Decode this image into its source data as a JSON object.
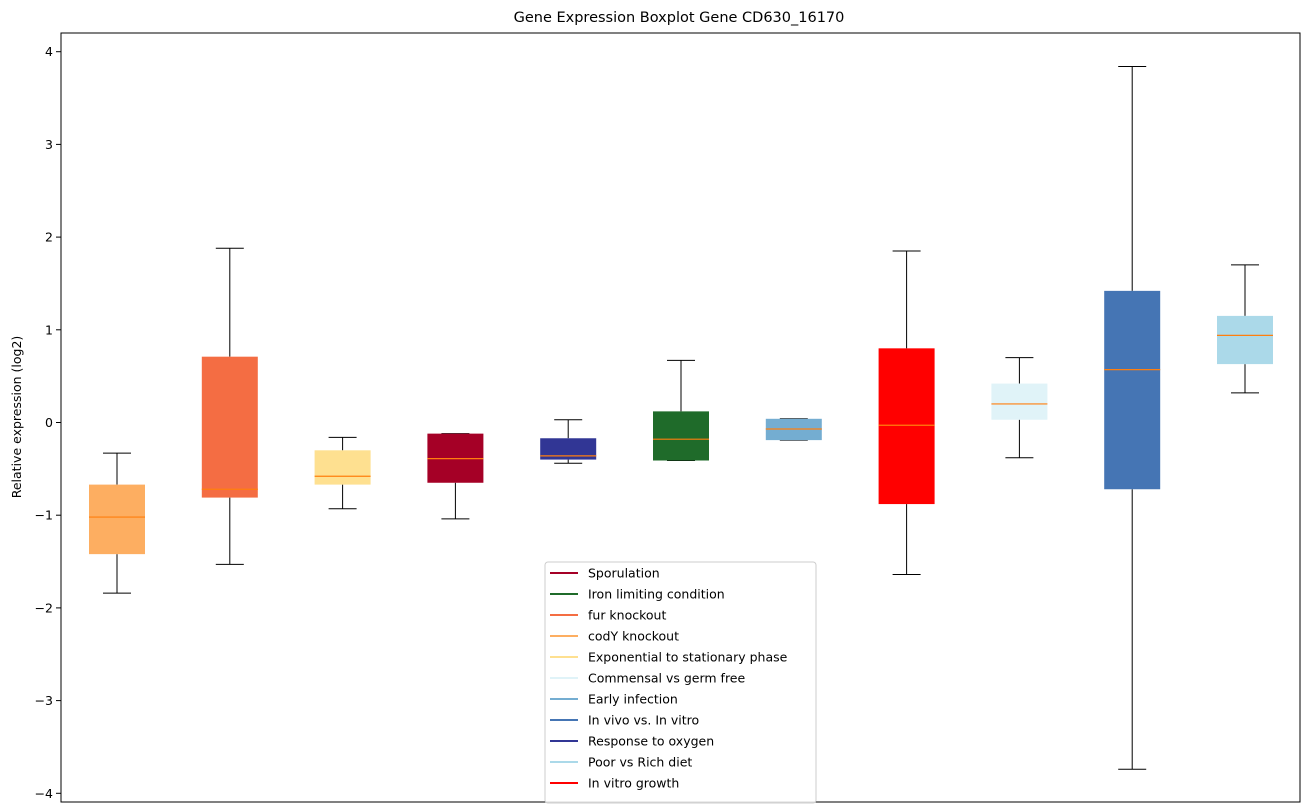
{
  "chart_data": {
    "type": "box",
    "title": "Gene Expression Boxplot Gene CD630_16170",
    "xlabel": "",
    "ylabel": "Relative expression (log2)",
    "ylim": [
      -4.1,
      4.2
    ],
    "yticks": [
      4,
      3,
      2,
      1,
      0,
      -1,
      -2,
      -3,
      -4
    ],
    "ytick_labels": [
      "4",
      "3",
      "2",
      "1",
      "0",
      "−1",
      "−2",
      "−3",
      "−4"
    ],
    "grid": false,
    "legend_position": "lower-center",
    "boxes": [
      {
        "whisker_low": -1.84,
        "q1": -1.42,
        "median": -1.02,
        "q3": -0.67,
        "whisker_high": -0.33,
        "color": "#fdae61"
      },
      {
        "whisker_low": -1.53,
        "q1": -0.81,
        "median": -0.72,
        "q3": 0.71,
        "whisker_high": 1.88,
        "color": "#f46d43"
      },
      {
        "whisker_low": -0.93,
        "q1": -0.67,
        "median": -0.58,
        "q3": -0.3,
        "whisker_high": -0.16,
        "color": "#fee090"
      },
      {
        "whisker_low": -1.04,
        "q1": -0.65,
        "median": -0.39,
        "q3": -0.12,
        "whisker_high": -0.12,
        "color": "#a50026"
      },
      {
        "whisker_low": -0.44,
        "q1": -0.4,
        "median": -0.36,
        "q3": -0.17,
        "whisker_high": 0.03,
        "color": "#313695"
      },
      {
        "whisker_low": -0.41,
        "q1": -0.41,
        "median": -0.18,
        "q3": 0.12,
        "whisker_high": 0.67,
        "color": "#1f6b2a"
      },
      {
        "whisker_low": -0.19,
        "q1": -0.19,
        "median": -0.07,
        "q3": 0.04,
        "whisker_high": 0.04,
        "color": "#74add1"
      },
      {
        "whisker_low": -1.64,
        "q1": -0.88,
        "median": -0.03,
        "q3": 0.8,
        "whisker_high": 1.85,
        "color": "#ff0000"
      },
      {
        "whisker_low": -0.38,
        "q1": 0.03,
        "median": 0.2,
        "q3": 0.42,
        "whisker_high": 0.7,
        "color": "#e0f3f8"
      },
      {
        "whisker_low": -3.74,
        "q1": -0.72,
        "median": 0.57,
        "q3": 1.42,
        "whisker_high": 3.84,
        "color": "#4575b4"
      },
      {
        "whisker_low": 0.32,
        "q1": 0.63,
        "median": 0.94,
        "q3": 1.15,
        "whisker_high": 1.7,
        "color": "#abd9e9"
      }
    ],
    "median_color": "#ff7f0e",
    "legend": [
      {
        "label": "Sporulation",
        "color": "#a50026"
      },
      {
        "label": "Iron limiting condition",
        "color": "#1f6b2a"
      },
      {
        "label": "fur knockout",
        "color": "#f46d43"
      },
      {
        "label": "codY knockout",
        "color": "#fdae61"
      },
      {
        "label": "Exponential to stationary phase",
        "color": "#fee090"
      },
      {
        "label": "Commensal vs germ free",
        "color": "#e0f3f8"
      },
      {
        "label": "Early infection",
        "color": "#74add1"
      },
      {
        "label": "In vivo vs. In vitro",
        "color": "#4575b4"
      },
      {
        "label": "Response to oxygen",
        "color": "#313695"
      },
      {
        "label": "Poor vs Rich diet",
        "color": "#abd9e9"
      },
      {
        "label": "In vitro growth",
        "color": "#ff0000"
      }
    ]
  }
}
